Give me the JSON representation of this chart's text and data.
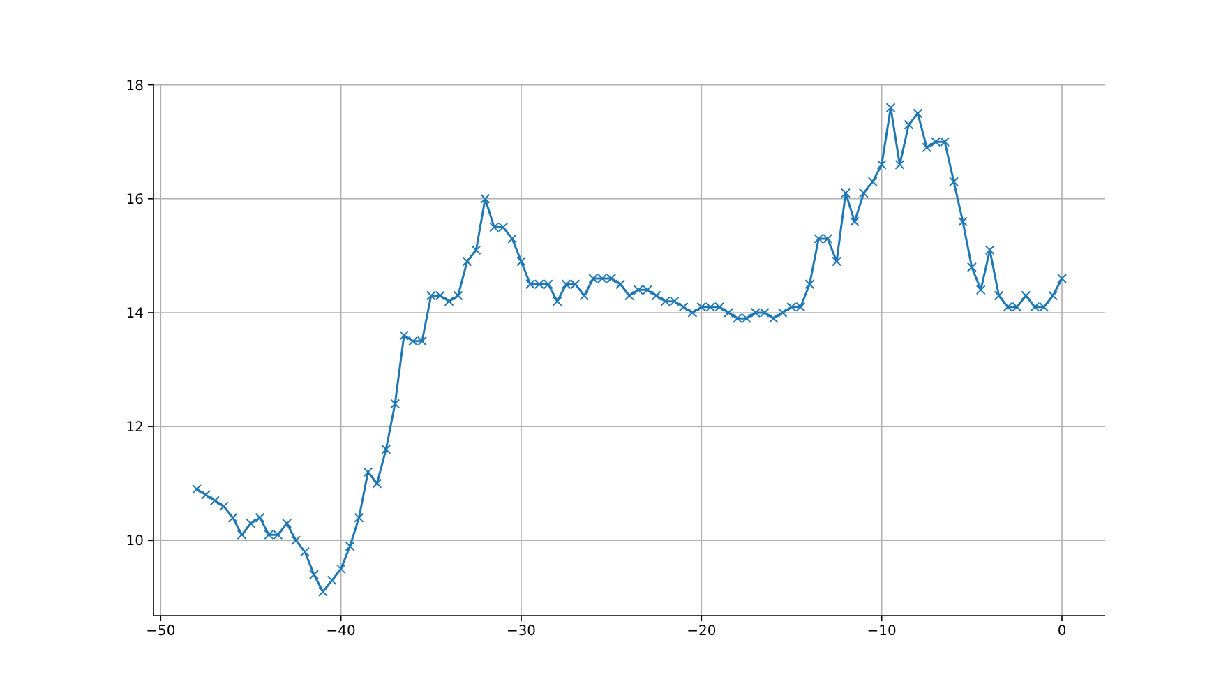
{
  "chart_data": {
    "type": "line",
    "x": [
      -48,
      -47.5,
      -47,
      -46.5,
      -46,
      -45.5,
      -45,
      -44.5,
      -44,
      -43.5,
      -43,
      -42.5,
      -42,
      -41.5,
      -41,
      -40.5,
      -40,
      -39.5,
      -39,
      -38.5,
      -38,
      -37.5,
      -37,
      -36.5,
      -36,
      -35.5,
      -35,
      -34.5,
      -34,
      -33.5,
      -33,
      -32.5,
      -32,
      -31.5,
      -31,
      -30.5,
      -30,
      -29.5,
      -29,
      -28.5,
      -28,
      -27.5,
      -27,
      -26.5,
      -26,
      -25.5,
      -25,
      -24.5,
      -24,
      -23.5,
      -23,
      -22.5,
      -22,
      -21.5,
      -21,
      -20.5,
      -20,
      -19.5,
      -19,
      -18.5,
      -18,
      -17.5,
      -17,
      -16.5,
      -16,
      -15.5,
      -15,
      -14.5,
      -14,
      -13.5,
      -13,
      -12.5,
      -12,
      -11.5,
      -11,
      -10.5,
      -10,
      -9.5,
      -9,
      -8.5,
      -8,
      -7.5,
      -7,
      -6.5,
      -6,
      -5.5,
      -5,
      -4.5,
      -4,
      -3.5,
      -3,
      -2.5,
      -2,
      -1.5,
      -1,
      -0.5,
      0
    ],
    "series": [
      {
        "color": "#1f77b4",
        "values": [
          10.9,
          10.8,
          10.7,
          10.6,
          10.4,
          10.1,
          10.3,
          10.4,
          10.1,
          10.1,
          10.3,
          10.0,
          9.8,
          9.4,
          9.1,
          9.3,
          9.5,
          9.9,
          10.4,
          11.2,
          11.0,
          11.6,
          12.4,
          13.6,
          13.5,
          13.5,
          14.3,
          14.3,
          14.2,
          14.3,
          14.9,
          15.1,
          16.0,
          15.5,
          15.5,
          15.3,
          14.9,
          14.5,
          14.5,
          14.5,
          14.2,
          14.5,
          14.5,
          14.3,
          14.6,
          14.6,
          14.6,
          14.5,
          14.3,
          14.4,
          14.4,
          14.3,
          14.2,
          14.2,
          14.1,
          14.0,
          14.1,
          14.1,
          14.1,
          14.0,
          13.9,
          13.9,
          14.0,
          14.0,
          13.9,
          14.0,
          14.1,
          14.1,
          14.5,
          15.3,
          15.3,
          14.9,
          16.1,
          15.6,
          16.1,
          16.3,
          16.6,
          17.6,
          16.6,
          17.3,
          17.5,
          16.9,
          17.0,
          17.0,
          16.3,
          15.6,
          14.8,
          14.4,
          15.1,
          14.3,
          14.1,
          14.1,
          14.3,
          14.1,
          14.1,
          14.3,
          14.6
        ]
      }
    ],
    "xlim": [
      -50.4,
      2.4
    ],
    "ylim": [
      8.68,
      18.02
    ],
    "xticks": [
      -50,
      -40,
      -30,
      -20,
      -10,
      0
    ],
    "yticks": [
      10,
      12,
      14,
      16,
      18
    ],
    "grid": true,
    "marker": "cross",
    "line_style": "solid"
  }
}
